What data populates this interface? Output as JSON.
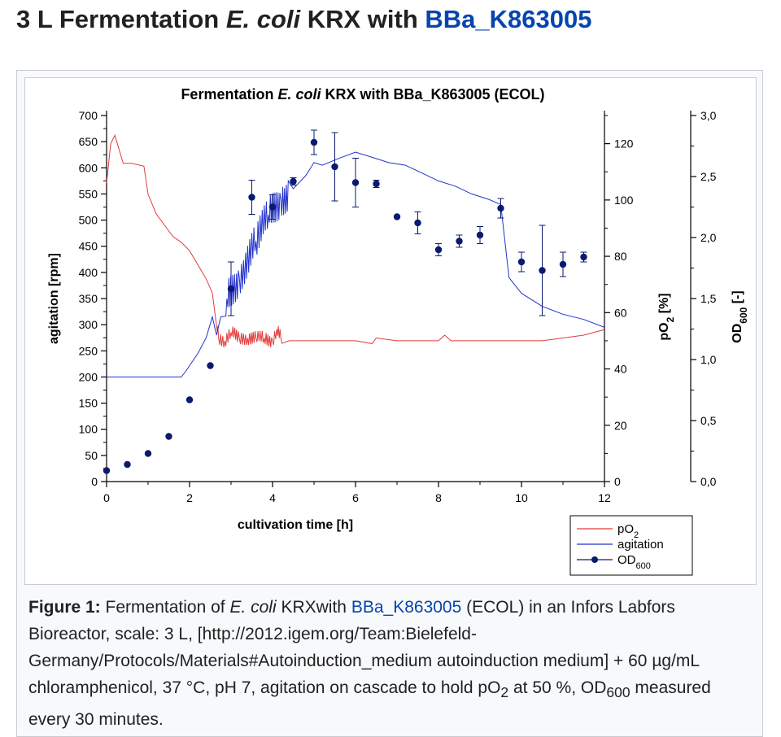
{
  "heading": {
    "prefix": "3 L Fermentation ",
    "organism": "E. coli",
    "middle": " KRX with ",
    "link": "BBa_K863005"
  },
  "caption": {
    "label": "Figure 1:",
    "t1": " Fermentation of ",
    "organism": "E. coli",
    "t2": " KRXwith ",
    "link": "BBa_K863005",
    "t3": " (ECOL) in an Infors Labfors Bioreactor, scale: 3 L, [http://2012.igem.org/Team:Bielefeld-Germany/Protocols/Materials#Autoinduction_medium autoinduction medium] + 60 µg/mL chloramphenicol, 37 °C, pH 7, agitation on cascade to hold pO",
    "sub1": "2",
    "t4": " at 50 %, OD",
    "sub2": "600",
    "t5": " measured every 30 minutes."
  },
  "colors": {
    "pO2": "#e23b3b",
    "agitation": "#2233cc",
    "od600": "#0a1a70",
    "link": "#0645ad"
  },
  "chart_data": {
    "type": "line",
    "title": {
      "prefix": "Fermentation ",
      "italic": "E. coli",
      "suffix": " KRX with BBa_K863005 (ECOL)"
    },
    "xlabel": "cultivation time [h]",
    "xlim": [
      0,
      12
    ],
    "x_ticks": [
      "0",
      "2",
      "4",
      "6",
      "8",
      "10",
      "12"
    ],
    "axes": [
      {
        "key": "agitation",
        "label": "agitation [rpm]",
        "lim": [
          0,
          700
        ],
        "ticks": [
          "0",
          "50",
          "100",
          "150",
          "200",
          "250",
          "300",
          "350",
          "400",
          "450",
          "500",
          "550",
          "600",
          "650",
          "700"
        ]
      },
      {
        "key": "pO2",
        "label_main": "pO",
        "label_sub": "2",
        "label_tail": " [%]",
        "lim": [
          0,
          130
        ],
        "ticks": [
          "0",
          "20",
          "40",
          "60",
          "80",
          "100",
          "120"
        ]
      },
      {
        "key": "od600",
        "label_main": "OD",
        "label_sub": "600",
        "label_tail": " [-]",
        "lim": [
          0,
          3.0
        ],
        "ticks": [
          "0,0",
          "0,5",
          "1,0",
          "1,5",
          "2,0",
          "2,5",
          "3,0"
        ]
      }
    ],
    "legend": {
      "placement": "bottom-right",
      "items": [
        {
          "main": "pO",
          "sub": "2"
        },
        {
          "main": "agitation",
          "sub": ""
        },
        {
          "main": "OD",
          "sub": "600"
        }
      ]
    },
    "series": [
      {
        "name": "pO2",
        "axis": "pO2",
        "x": [
          0,
          0.1,
          0.2,
          0.4,
          0.6,
          0.9,
          1.0,
          1.2,
          1.4,
          1.6,
          1.8,
          2.0,
          2.2,
          2.4,
          2.55,
          2.7,
          2.85,
          3.0,
          3.2,
          3.4,
          3.6,
          3.8,
          4.0,
          4.1,
          4.2,
          4.4,
          5.0,
          5.5,
          6.0,
          6.4,
          6.5,
          7.0,
          8.0,
          8.15,
          8.3,
          9.0,
          10.0,
          10.5,
          11.0,
          11.5,
          12.0
        ],
        "y": [
          106,
          120,
          123,
          113,
          113,
          112,
          102,
          95,
          91,
          87,
          85,
          82,
          77,
          72,
          67,
          51,
          50,
          53,
          51,
          51,
          51,
          51,
          50,
          54,
          51,
          50,
          50,
          50,
          50,
          49,
          51,
          50,
          50,
          52,
          50,
          50,
          50,
          50,
          51,
          52,
          54
        ],
        "noise": {
          "from": 2.65,
          "to": 4.25,
          "amplitude": 2.5
        }
      },
      {
        "name": "agitation",
        "axis": "agitation",
        "x": [
          0,
          1.8,
          1.9,
          2.2,
          2.4,
          2.55,
          2.65,
          2.75,
          2.9,
          3.2,
          3.6,
          3.9,
          4.2,
          4.5,
          4.8,
          5.0,
          5.2,
          5.6,
          6.0,
          6.4,
          6.8,
          7.2,
          7.6,
          8.0,
          8.4,
          8.8,
          9.2,
          9.5,
          9.7,
          10.0,
          10.5,
          11.0,
          11.5,
          12.0
        ],
        "y": [
          200,
          200,
          210,
          245,
          275,
          315,
          280,
          315,
          350,
          390,
          460,
          510,
          540,
          560,
          585,
          610,
          605,
          618,
          630,
          620,
          610,
          605,
          590,
          575,
          565,
          550,
          540,
          530,
          390,
          360,
          335,
          320,
          310,
          295
        ],
        "noise": {
          "from": 2.85,
          "to": 4.4,
          "amplitude": 35
        }
      },
      {
        "name": "OD600",
        "axis": "od600",
        "x": [
          0,
          0.5,
          1.0,
          1.5,
          2.0,
          2.5,
          3.0,
          3.5,
          4.0,
          4.5,
          5.0,
          5.5,
          6.0,
          6.5,
          7.0,
          7.5,
          8.0,
          8.5,
          9.0,
          9.5,
          10.0,
          10.5,
          11.0,
          11.5
        ],
        "y": [
          0.09,
          0.14,
          0.23,
          0.37,
          0.67,
          0.95,
          1.58,
          2.33,
          2.25,
          2.46,
          2.78,
          2.58,
          2.45,
          2.44,
          2.17,
          2.12,
          1.9,
          1.97,
          2.02,
          2.24,
          1.8,
          1.73,
          1.78,
          1.84
        ],
        "error": [
          0,
          0,
          0,
          0,
          0,
          0,
          0.22,
          0.14,
          0.1,
          0.03,
          0.1,
          0.28,
          0.2,
          0.03,
          0,
          0.09,
          0.05,
          0.05,
          0.07,
          0.08,
          0.08,
          0.37,
          0.1,
          0.04
        ]
      }
    ]
  }
}
